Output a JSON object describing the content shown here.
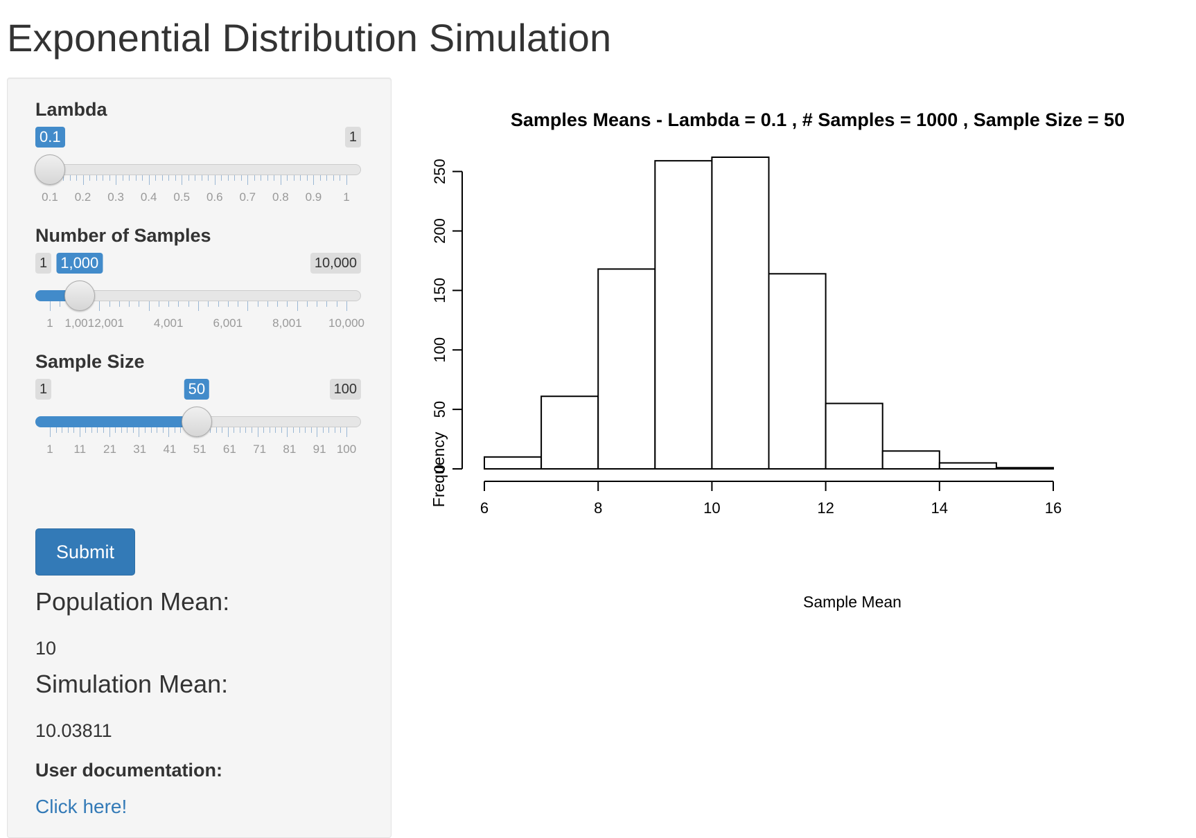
{
  "page": {
    "title": "Exponential Distribution Simulation"
  },
  "sidebar": {
    "lambda": {
      "label": "Lambda",
      "min": 0.1,
      "max": 1,
      "value": 0.1,
      "min_label": "0.1",
      "max_label": "1",
      "value_label": "0.1",
      "major_ticks": [
        "0.1",
        "0.2",
        "0.3",
        "0.4",
        "0.5",
        "0.6",
        "0.7",
        "0.8",
        "0.9",
        "1"
      ]
    },
    "num_samples": {
      "label": "Number of Samples",
      "min": 1,
      "max": 10000,
      "value": 1000,
      "min_label": "1",
      "max_label": "10,000",
      "value_label": "1,000",
      "major_ticks": [
        "1",
        "1,001",
        "2,001",
        "4,001",
        "6,001",
        "8,001",
        "10,000"
      ],
      "major_tick_values": [
        1,
        1001,
        2001,
        4001,
        6001,
        8001,
        10000
      ]
    },
    "sample_size": {
      "label": "Sample Size",
      "min": 1,
      "max": 100,
      "value": 50,
      "min_label": "1",
      "max_label": "100",
      "value_label": "50",
      "major_ticks": [
        "1",
        "11",
        "21",
        "31",
        "41",
        "51",
        "61",
        "71",
        "81",
        "91",
        "100"
      ]
    },
    "submit_label": "Submit",
    "population_mean": {
      "heading": "Population Mean:",
      "value": "10"
    },
    "simulation_mean": {
      "heading": "Simulation Mean:",
      "value": "10.03811"
    },
    "doc": {
      "label": "User documentation:",
      "link_text": "Click here!"
    }
  },
  "colors": {
    "accent": "#428bca",
    "button": "#337ab7",
    "panel": "#f5f5f5"
  },
  "chart_data": {
    "type": "bar",
    "title": "Samples Means - Lambda =  0.1 , # Samples =  1000 , Sample Size =  50",
    "xlabel": "Sample Mean",
    "ylabel": "Frequency",
    "bin_edges": [
      6,
      7,
      8,
      9,
      10,
      11,
      12,
      13,
      14,
      15,
      16
    ],
    "values": [
      10,
      61,
      168,
      259,
      262,
      164,
      55,
      15,
      5,
      1
    ],
    "xlim": [
      6,
      16
    ],
    "ylim": [
      0,
      262
    ],
    "xticks": [
      6,
      8,
      10,
      12,
      14,
      16
    ],
    "yticks": [
      0,
      50,
      100,
      150,
      200,
      250
    ],
    "grid": false
  }
}
